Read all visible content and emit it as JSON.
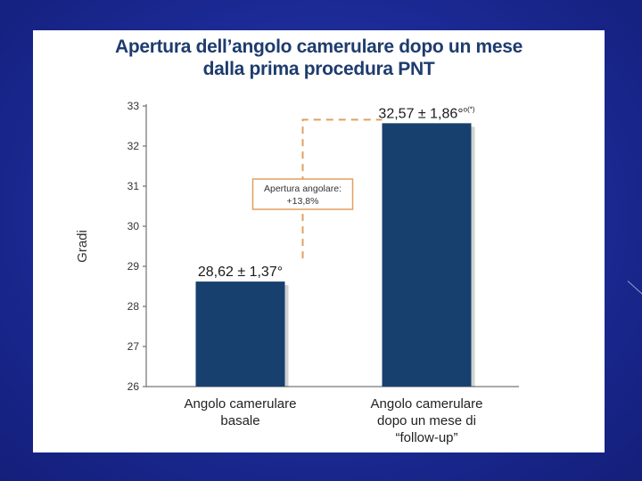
{
  "slide": {
    "background": "#1b2a95",
    "panel_color": "#ffffff"
  },
  "chart_data": {
    "type": "bar",
    "title_line1": "Apertura dell’angolo camerulare dopo un mese",
    "title_line2": "dalla prima procedura PNT",
    "ylabel": "Gradi",
    "ylim": [
      26,
      33
    ],
    "yticks": [
      "26",
      "27",
      "28",
      "29",
      "30",
      "31",
      "32",
      "33"
    ],
    "grid": false,
    "categories": [
      [
        "Angolo camerulare",
        "basale"
      ],
      [
        "Angolo camerulare",
        "dopo un mese di",
        "“follow-up”"
      ]
    ],
    "values": [
      28.62,
      32.57
    ],
    "data_labels": [
      {
        "main": "28,62 ± 1,37°",
        "sup": ""
      },
      {
        "main": "32,57 ± 1,86°",
        "sup": "o(*)"
      }
    ],
    "bar_color": "#17406e",
    "annotation": {
      "line1": "Apertura angolare:",
      "line2": "+13,8%",
      "color": "#e0a060"
    }
  }
}
